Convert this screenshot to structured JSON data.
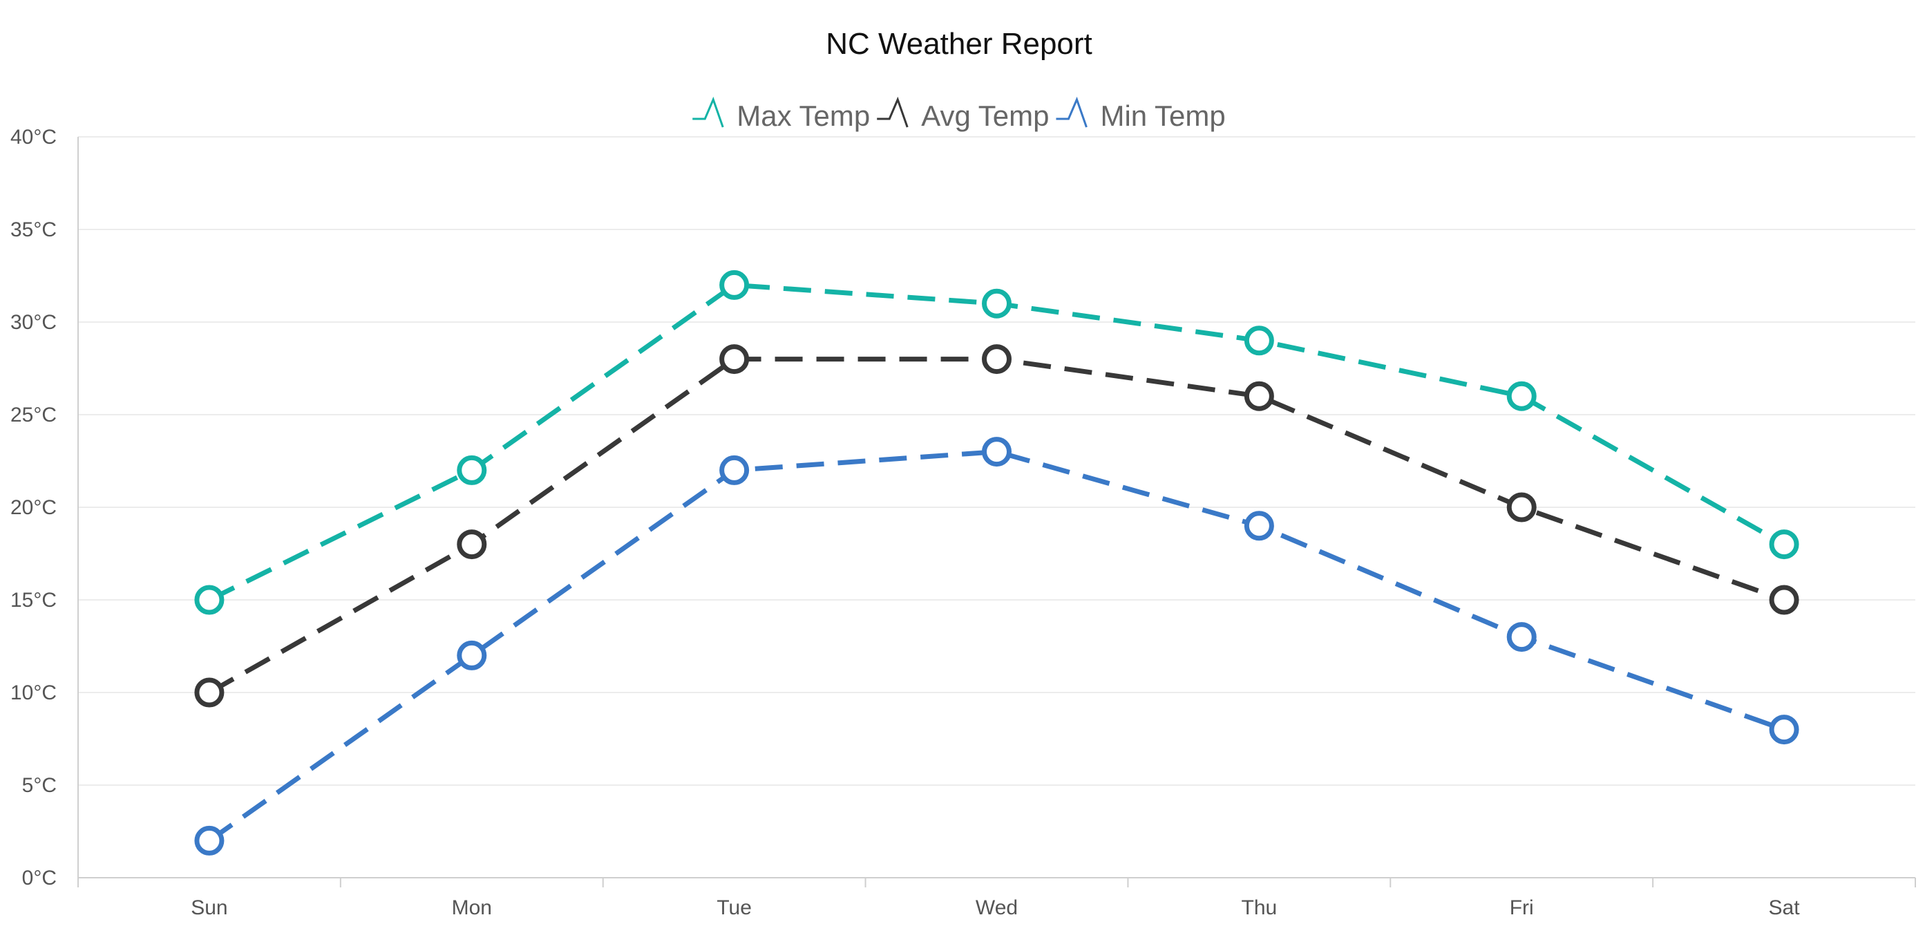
{
  "chart_data": {
    "type": "line",
    "title": "NC Weather Report",
    "categories": [
      "Sun",
      "Mon",
      "Tue",
      "Wed",
      "Thu",
      "Fri",
      "Sat"
    ],
    "series": [
      {
        "name": "Max Temp",
        "color": "#14b3a6",
        "values": [
          15,
          22,
          32,
          31,
          29,
          26,
          18
        ]
      },
      {
        "name": "Avg Temp",
        "color": "#383838",
        "values": [
          10,
          18,
          28,
          28,
          26,
          20,
          15
        ]
      },
      {
        "name": "Min Temp",
        "color": "#3a79c7",
        "values": [
          2,
          12,
          22,
          23,
          19,
          13,
          8
        ]
      }
    ],
    "y_ticks": [
      "0°C",
      "5°C",
      "10°C",
      "15°C",
      "20°C",
      "25°C",
      "30°C",
      "35°C",
      "40°C"
    ],
    "ylim": [
      0,
      40
    ],
    "y_unit": "°C",
    "line_style": "dashed",
    "marker": "hollow-circle",
    "grid": true,
    "legend_position": "top-center",
    "legend_icon": "line-series-icon"
  }
}
